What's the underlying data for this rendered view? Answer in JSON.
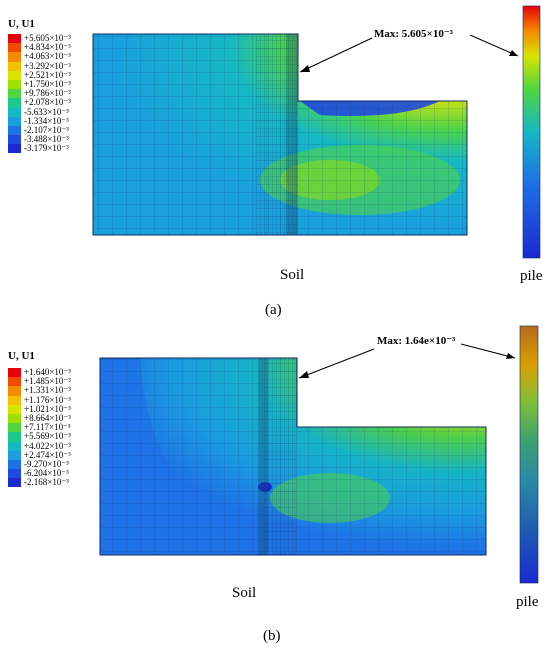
{
  "panels": [
    {
      "id": "a",
      "legend_title": "U, U1",
      "legend_ticks": [
        "+5.605×10⁻³",
        "+4.834×10⁻³",
        "+4.063×10⁻³",
        "+3.292×10⁻³",
        "+2.521×10⁻³",
        "+1.750×10⁻³",
        "+9.786×10⁻³",
        "+2.078×10⁻³",
        "-5.633×10⁻³",
        "-1.334×10⁻³",
        "-2.107×10⁻³",
        "-3.488×10⁻³",
        "-3.179×10⁻³"
      ],
      "max_label": "Max: 5.605×10⁻³",
      "soil_label": "Soil",
      "pile_label": "pile",
      "caption": "(a)"
    },
    {
      "id": "b",
      "legend_title": "U, U1",
      "legend_ticks": [
        "+1.640×10⁻³",
        "+1.485×10⁻³",
        "+1.331×10⁻³",
        "+1.176×10⁻³",
        "+1.021×10⁻³",
        "+8.664×10⁻³",
        "+7.117×10⁻³",
        "+5.569×10⁻³",
        "+4.022×10⁻³",
        "+2.474×10⁻³",
        "-9.270×10⁻³",
        "-6.204×10⁻³",
        "-2.168×10⁻³"
      ],
      "max_label": "Max: 1.64e×10⁻³",
      "soil_label": "Soil",
      "pile_label": "pile",
      "caption": "(b)"
    }
  ],
  "colors": {
    "scale": [
      "#e8000b",
      "#f04a00",
      "#f58b00",
      "#f2c200",
      "#d7e400",
      "#9ee000",
      "#4fd640",
      "#1cc98a",
      "#16b8c4",
      "#1a9ee0",
      "#1d72e6",
      "#1f4ae0",
      "#1a2ad0"
    ],
    "mesh_bg": "#1f6fd8"
  }
}
